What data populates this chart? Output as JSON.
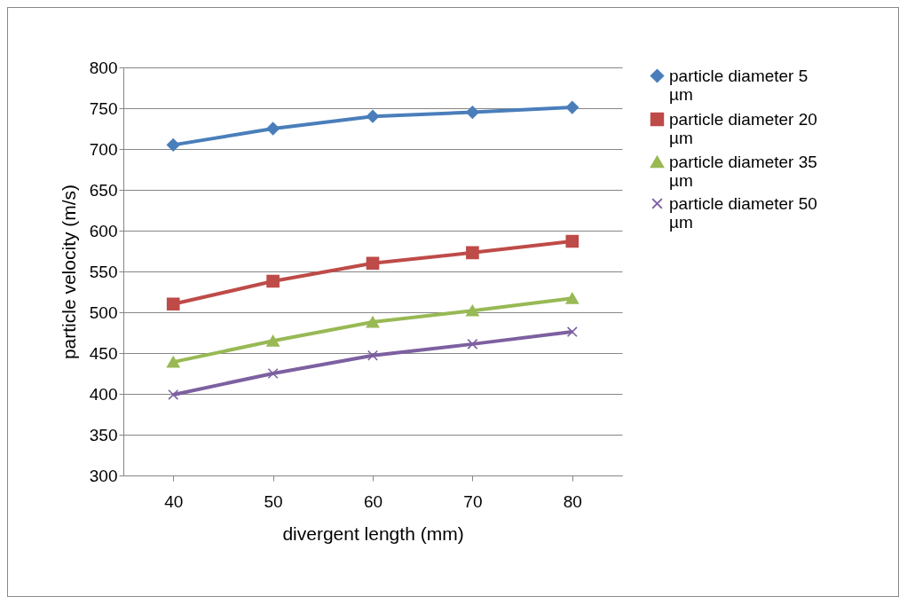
{
  "chart_data": {
    "type": "line",
    "xlabel": "divergent length (mm)",
    "ylabel": "particle velocity (m/s)",
    "categories": [
      "40",
      "50",
      "60",
      "70",
      "80"
    ],
    "ylim": [
      300,
      800
    ],
    "yticks": [
      300,
      350,
      400,
      450,
      500,
      550,
      600,
      650,
      700,
      750,
      800
    ],
    "grid": "y",
    "legend": "right",
    "line_style": "solid",
    "series": [
      {
        "name": "particle diameter 5 µm",
        "color": "#4a7ebb",
        "marker": "diamond",
        "values": [
          705,
          725,
          740,
          745,
          751
        ]
      },
      {
        "name": "particle diameter 20 µm",
        "color": "#be4b48",
        "marker": "square",
        "values": [
          510,
          538,
          560,
          573,
          587
        ]
      },
      {
        "name": "particle diameter 35 µm",
        "color": "#98b954",
        "marker": "triangle",
        "values": [
          439,
          465,
          488,
          502,
          517
        ]
      },
      {
        "name": "particle diameter 50 µm",
        "color": "#7d60a0",
        "marker": "cross",
        "values": [
          399,
          425,
          447,
          461,
          476
        ]
      }
    ]
  }
}
